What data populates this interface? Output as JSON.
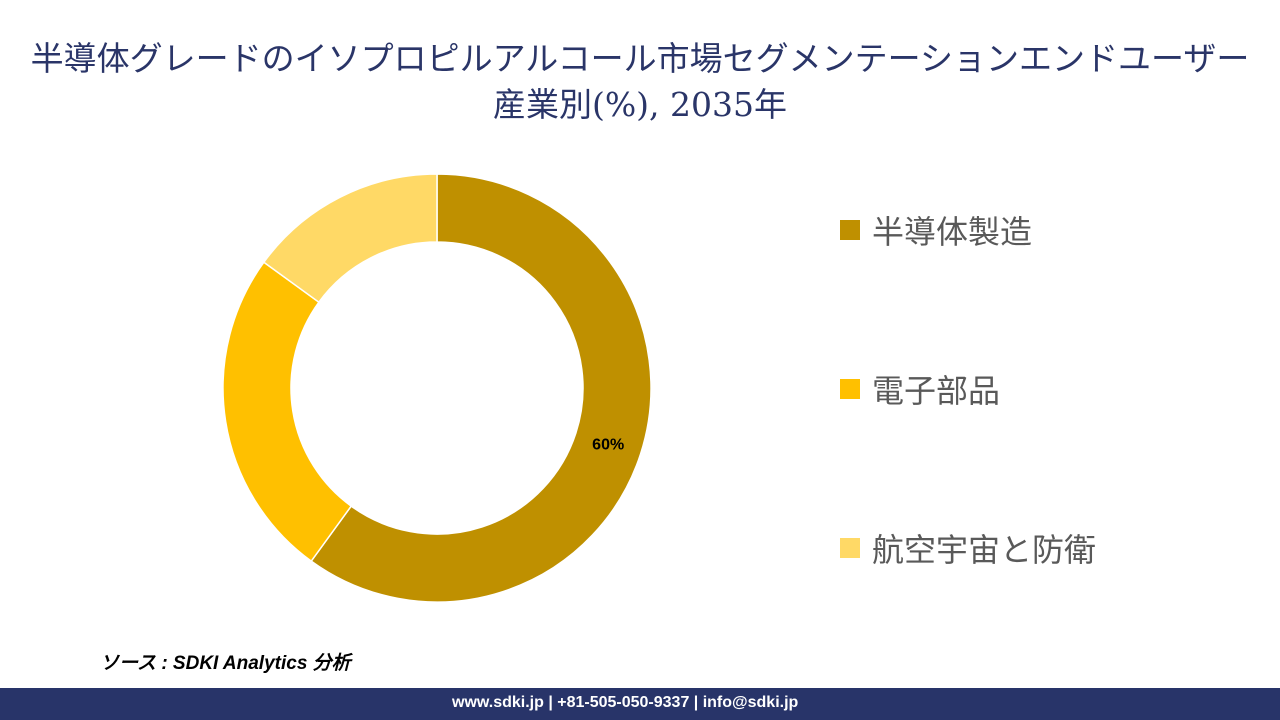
{
  "chart_data": {
    "type": "pie",
    "subtype": "donut",
    "title": "半導体グレードのイソプロピルアルコール市場セグメンテーションエンドユーザー産業別(%), 2035年",
    "categories": [
      "半導体製造",
      "電子部品",
      "航空宇宙と防衛"
    ],
    "values": [
      60,
      25,
      15
    ],
    "colors": [
      "#BF9000",
      "#FFC000",
      "#FFD966"
    ],
    "data_labels": [
      "60%",
      "",
      ""
    ],
    "legend_position": "right"
  },
  "source": "ソース : SDKI Analytics 分析",
  "footer": "www.sdki.jp | +81-505-050-9337 | info@sdki.jp"
}
